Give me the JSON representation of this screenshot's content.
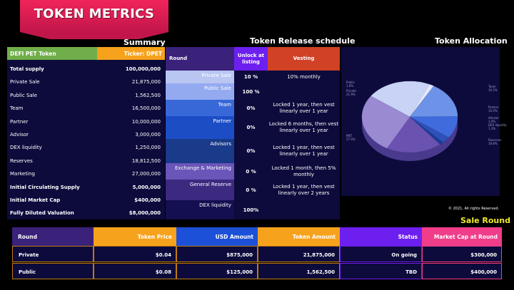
{
  "title": "TOKEN METRICS",
  "headings": {
    "summary": "Summary",
    "release": "Token Release schedule",
    "allocation": "Token Allocation",
    "sale_round": "Sale Round"
  },
  "summary": {
    "header_left": "DEFI PET Token",
    "header_right": "Ticker: DPET",
    "rows": [
      {
        "label": "Total supply",
        "value": "100,000,000",
        "bold": true
      },
      {
        "label": "Private Sale",
        "value": "21,875,000",
        "bold": false
      },
      {
        "label": "Public Sale",
        "value": "1,562,500",
        "bold": false
      },
      {
        "label": "Team",
        "value": "16,500,000",
        "bold": false
      },
      {
        "label": "Partner",
        "value": "10,000,000",
        "bold": false
      },
      {
        "label": "Advisor",
        "value": "3,000,000",
        "bold": false
      },
      {
        "label": "DEX liquidity",
        "value": "1,250,000",
        "bold": false
      },
      {
        "label": "Reserves",
        "value": "18,812,500",
        "bold": false
      },
      {
        "label": "Marketing",
        "value": "27,000,000",
        "bold": false
      },
      {
        "label": "Initial Circulating Supply",
        "value": "5,000,000",
        "bold": true
      },
      {
        "label": "Initial Market Cap",
        "value": "$400,000",
        "bold": true
      },
      {
        "label": "Fully Diluted Valuation",
        "value": "$8,000,000",
        "bold": true
      }
    ]
  },
  "release": {
    "headers": {
      "round": "Round",
      "unlock": "Unlock at listing",
      "vesting": "Vesting"
    },
    "rows": [
      {
        "round": "Private Sale",
        "unlock": "10 %",
        "vesting": "10% monthly",
        "color": "#b9c6f2"
      },
      {
        "round": "Public Sale",
        "unlock": "100 %",
        "vesting": "",
        "color": "#94aaf0"
      },
      {
        "round": "Team",
        "unlock": "0%",
        "vesting": "Locked 1 year, then vest linearly over 1 year",
        "color": "#3868d8"
      },
      {
        "round": "Partner",
        "unlock": "0%",
        "vesting": "Locked 6 months, then vest linearly over 1 year",
        "color": "#1d4dc5"
      },
      {
        "round": "Advisors",
        "unlock": "0%",
        "vesting": "Locked 1 year, then vest linearly over 1 year",
        "color": "#1a3a8a"
      },
      {
        "round": "Exchange & Marketing",
        "unlock": "0 %",
        "vesting": "Locked 1 month, then 5% monthly",
        "color": "#6a55b8"
      },
      {
        "round": "General Reserve",
        "unlock": "0 %",
        "vesting": "Locked 1 year, then vest linearly over 2 years",
        "color": "#3b2a80"
      },
      {
        "round": "DEX liquidity",
        "unlock": "100%",
        "vesting": "",
        "color": "#140f50"
      }
    ]
  },
  "allocation": {
    "legend_left": [
      {
        "name": "Public",
        "pct": "1.6%"
      },
      {
        "name": "Private",
        "pct": "21.9%"
      },
      {
        "name": "MKT",
        "pct": "27.0%"
      }
    ],
    "legend_right": [
      {
        "name": "Team",
        "pct": "16.5%"
      },
      {
        "name": "Partner",
        "pct": "10.0%"
      },
      {
        "name": "Advisor",
        "pct": "3.0%"
      },
      {
        "name": "DEX liquidity",
        "pct": "1.3%"
      },
      {
        "name": "Reserves",
        "pct": "18.8%"
      }
    ],
    "slices": [
      {
        "name": "Private",
        "value": 21.9,
        "color": "#c9d3f6"
      },
      {
        "name": "Public",
        "value": 1.6,
        "color": "#e3e8fb"
      },
      {
        "name": "Team",
        "value": 16.5,
        "color": "#6d93e8"
      },
      {
        "name": "Partner",
        "value": 10.0,
        "color": "#3f6bdd"
      },
      {
        "name": "Advisor",
        "value": 3.0,
        "color": "#2d51b8"
      },
      {
        "name": "DEX liquidity",
        "value": 1.3,
        "color": "#1d3a94"
      },
      {
        "name": "Reserves",
        "value": 18.8,
        "color": "#6a52b0"
      },
      {
        "name": "MKT",
        "value": 27.0,
        "color": "#9a8ad2"
      }
    ],
    "copyright": "© 2021, All rights Reserved."
  },
  "sale_round": {
    "headers": [
      {
        "label": "Round",
        "color": "#3a2179"
      },
      {
        "label": "Token Price",
        "color": "#f6a21c"
      },
      {
        "label": "USD Amount",
        "color": "#1d50d8"
      },
      {
        "label": "Token Amount",
        "color": "#f6a21c"
      },
      {
        "label": "Status",
        "color": "#6d1ff0"
      },
      {
        "label": "Market Cap at Round",
        "color": "#f03d8a"
      }
    ],
    "rows": [
      [
        "Private",
        "$0.04",
        "$875,000",
        "21,875,000",
        "On going",
        "$300,000"
      ],
      [
        "Public",
        "$0.08",
        "$125,000",
        "1,562,500",
        "TBD",
        "$400,000"
      ]
    ]
  }
}
